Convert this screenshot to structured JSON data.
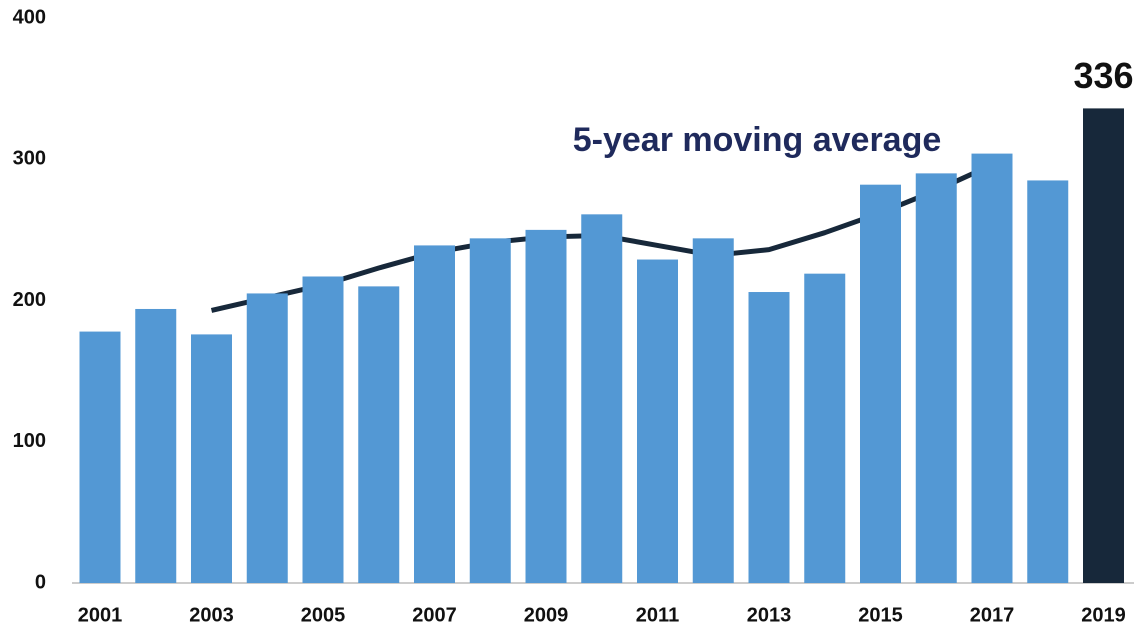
{
  "chart_data": {
    "type": "bar",
    "categories": [
      "2001",
      null,
      "2003",
      null,
      "2005",
      null,
      "2007",
      null,
      "2009",
      null,
      "2011",
      null,
      "2013",
      null,
      "2015",
      null,
      "2017",
      null,
      "2019"
    ],
    "series": [
      {
        "type": "bar",
        "values": [
          178,
          194,
          176,
          205,
          217,
          210,
          239,
          244,
          250,
          261,
          229,
          244,
          206,
          219,
          282,
          290,
          304,
          285,
          336
        ],
        "colors": [
          "#5398d4",
          "#5398d4",
          "#5398d4",
          "#5398d4",
          "#5398d4",
          "#5398d4",
          "#5398d4",
          "#5398d4",
          "#5398d4",
          "#5398d4",
          "#5398d4",
          "#5398d4",
          "#5398d4",
          "#5398d4",
          "#5398d4",
          "#5398d4",
          "#5398d4",
          "#5398d4",
          "#17283a"
        ]
      },
      {
        "type": "line",
        "name": "5-year moving average",
        "color": "#17283a",
        "values": [
          null,
          null,
          193,
          202,
          211,
          223,
          234,
          241,
          245,
          246,
          239,
          232,
          236,
          248,
          262,
          278,
          296,
          null,
          null
        ]
      }
    ],
    "ylim": [
      0,
      400
    ],
    "yticks": [
      0,
      100,
      200,
      300,
      400
    ],
    "grid": false
  }
}
